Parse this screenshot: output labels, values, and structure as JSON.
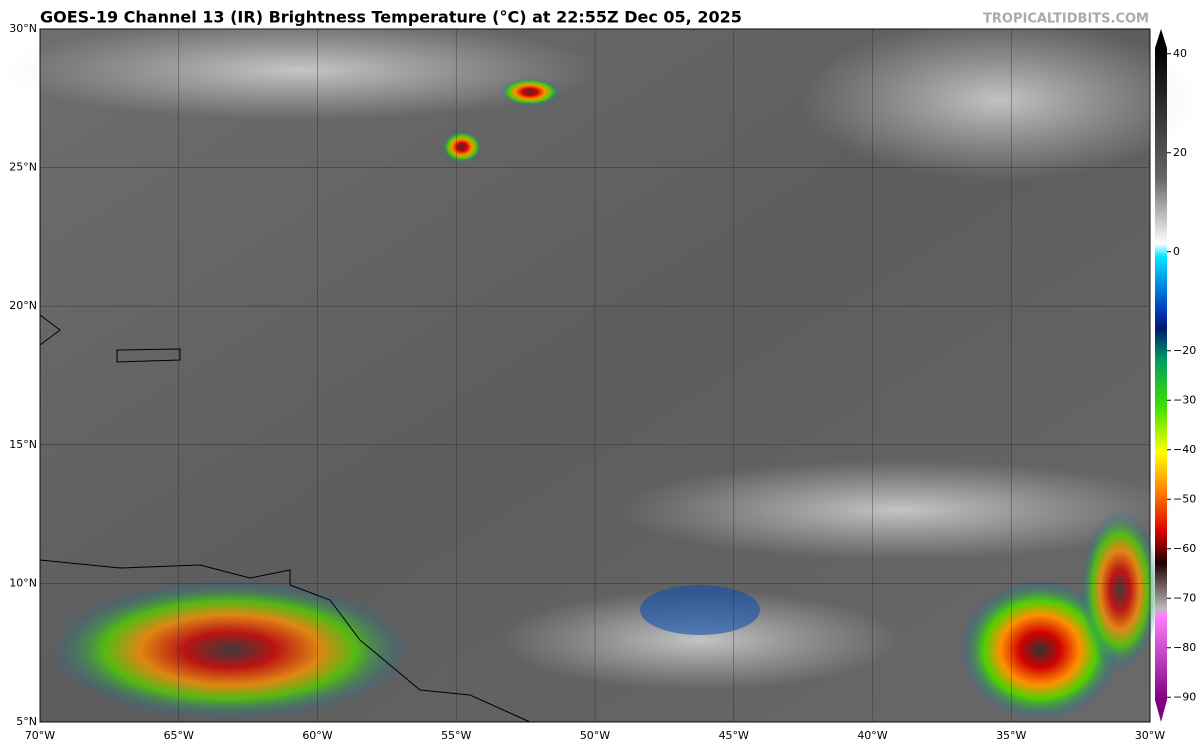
{
  "header": {
    "title": "GOES-19 Channel 13 (IR) Brightness Temperature (°C) at 22:55Z Dec 05, 2025",
    "site": "TROPICALTIDBITS.COM"
  },
  "map": {
    "lon_labels": [
      "70°W",
      "65°W",
      "60°W",
      "55°W",
      "50°W",
      "45°W",
      "40°W",
      "35°W",
      "30°W"
    ],
    "lat_labels": [
      "5°N",
      "10°N",
      "15°N",
      "20°N",
      "25°N",
      "30°N"
    ]
  },
  "colorbar": {
    "range": [
      45,
      -95
    ],
    "ticks": [
      {
        "value": 40,
        "label": "40"
      },
      {
        "value": 20,
        "label": "20"
      },
      {
        "value": 0,
        "label": "0"
      },
      {
        "value": -20,
        "label": "−20"
      },
      {
        "value": -30,
        "label": "−30"
      },
      {
        "value": -40,
        "label": "−40"
      },
      {
        "value": -50,
        "label": "−50"
      },
      {
        "value": -60,
        "label": "−60"
      },
      {
        "value": -70,
        "label": "−70"
      },
      {
        "value": -80,
        "label": "−80"
      },
      {
        "value": -90,
        "label": "−90"
      }
    ]
  }
}
